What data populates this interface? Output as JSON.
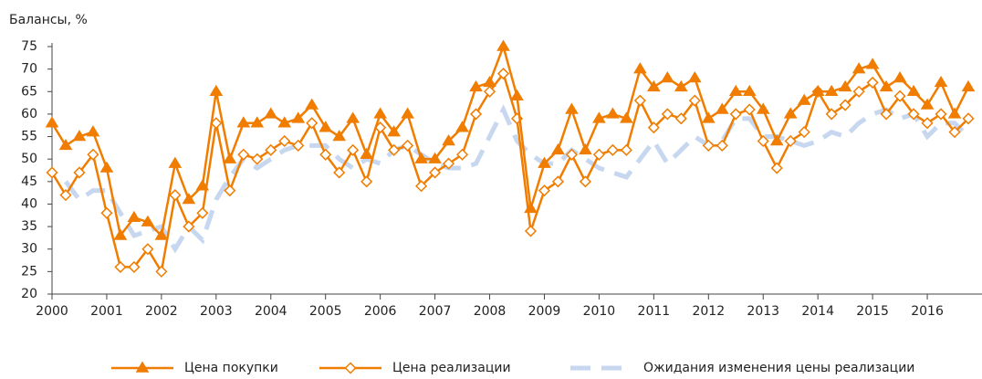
{
  "chart_data": {
    "type": "line",
    "y_axis_label": "Балансы, %",
    "x": [
      2000,
      2000.25,
      2000.5,
      2000.75,
      2001,
      2001.25,
      2001.5,
      2001.75,
      2002,
      2002.25,
      2002.5,
      2002.75,
      2003,
      2003.25,
      2003.5,
      2003.75,
      2004,
      2004.25,
      2004.5,
      2004.75,
      2005,
      2005.25,
      2005.5,
      2005.75,
      2006,
      2006.25,
      2006.5,
      2006.75,
      2007,
      2007.25,
      2007.5,
      2007.75,
      2008,
      2008.25,
      2008.5,
      2008.75,
      2009,
      2009.25,
      2009.5,
      2009.75,
      2010,
      2010.25,
      2010.5,
      2010.75,
      2011,
      2011.25,
      2011.5,
      2011.75,
      2012,
      2012.25,
      2012.5,
      2012.75,
      2013,
      2013.25,
      2013.5,
      2013.75,
      2014,
      2014.25,
      2014.5,
      2014.75,
      2015,
      2015.25,
      2015.5,
      2015.75,
      2016,
      2016.25,
      2016.5,
      2016.75
    ],
    "series": [
      {
        "name": "Цена покупки",
        "color": "#f07c00",
        "marker": "triangle",
        "values": [
          58,
          53,
          55,
          56,
          48,
          33,
          37,
          36,
          33,
          49,
          41,
          44,
          65,
          50,
          58,
          58,
          60,
          58,
          59,
          62,
          57,
          55,
          59,
          51,
          60,
          56,
          60,
          50,
          50,
          54,
          57,
          66,
          67,
          75,
          64,
          39,
          49,
          52,
          61,
          52,
          59,
          60,
          59,
          70,
          66,
          68,
          66,
          68,
          59,
          61,
          65,
          65,
          61,
          54,
          60,
          63,
          65,
          65,
          66,
          70,
          71,
          66,
          68,
          65,
          62,
          67,
          60,
          66
        ]
      },
      {
        "name": "Цена реализации",
        "color": "#f07c00",
        "marker": "diamond",
        "values": [
          47,
          42,
          47,
          51,
          38,
          26,
          26,
          30,
          25,
          42,
          35,
          38,
          58,
          43,
          51,
          50,
          52,
          54,
          53,
          58,
          51,
          47,
          52,
          45,
          57,
          52,
          53,
          44,
          47,
          49,
          51,
          60,
          65,
          69,
          59,
          34,
          43,
          45,
          51,
          45,
          51,
          52,
          52,
          63,
          57,
          60,
          59,
          63,
          53,
          53,
          60,
          61,
          54,
          48,
          54,
          56,
          65,
          60,
          62,
          65,
          67,
          60,
          64,
          60,
          58,
          60,
          56,
          59
        ]
      },
      {
        "name": "Ожидания изменения цены реализации",
        "color": "#c6d7ef",
        "dashed": true,
        "values": [
          null,
          45,
          41,
          43,
          43,
          38,
          33,
          34,
          35,
          30,
          35,
          32,
          41,
          46,
          50,
          48,
          50,
          52,
          53,
          53,
          53,
          50,
          48,
          50,
          49,
          52,
          53,
          51,
          49,
          48,
          48,
          49,
          55,
          61,
          54,
          51,
          49,
          49,
          52,
          50,
          48,
          47,
          46,
          50,
          54,
          49,
          52,
          55,
          53,
          54,
          59,
          59,
          55,
          55,
          54,
          53,
          54,
          56,
          55,
          58,
          60,
          61,
          59,
          60,
          55,
          58,
          58,
          55
        ]
      }
    ],
    "xlim": [
      2000,
      2017
    ],
    "xticks": [
      2000,
      2001,
      2002,
      2003,
      2004,
      2005,
      2006,
      2007,
      2008,
      2009,
      2010,
      2011,
      2012,
      2013,
      2014,
      2015,
      2016
    ],
    "ylim": [
      20,
      75
    ],
    "yticks": [
      20,
      25,
      30,
      35,
      40,
      45,
      50,
      55,
      60,
      65,
      70,
      75
    ]
  }
}
